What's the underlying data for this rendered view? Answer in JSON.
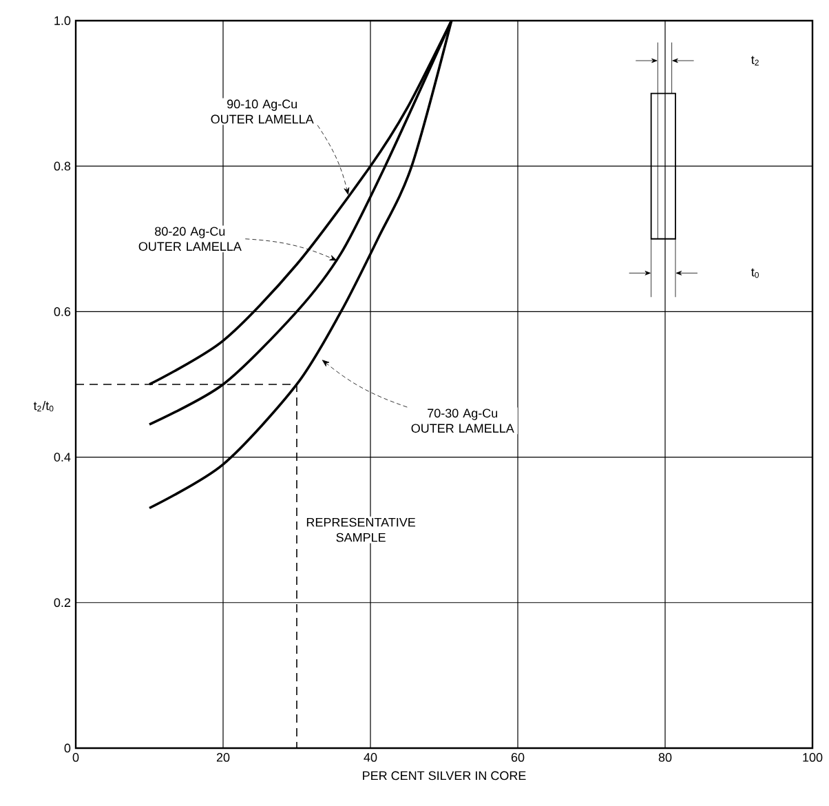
{
  "chart_data": {
    "type": "line",
    "xlabel": "PER CENT SILVER IN CORE",
    "ylabel": "t$_{2}$/t$_{0}$",
    "xlim": [
      0,
      100
    ],
    "ylim": [
      0,
      1
    ],
    "xticks": [
      0,
      20,
      40,
      60,
      80,
      100
    ],
    "yticks": [
      0,
      0.2,
      0.4,
      0.6,
      0.8,
      {
        "value": 1,
        "label": "1.0"
      }
    ],
    "grid": true,
    "marker": "none",
    "series": [
      {
        "color": "#000000",
        "line_style": "solid",
        "x": [
          10,
          20,
          30,
          40,
          45,
          51
        ],
        "values": [
          0.5,
          0.56,
          0.665,
          0.8,
          0.88,
          1.0
        ]
      },
      {
        "color": "#000000",
        "line_style": "solid",
        "x": [
          10,
          20,
          30,
          36,
          42,
          51
        ],
        "values": [
          0.445,
          0.5,
          0.6,
          0.68,
          0.8,
          1.0
        ]
      },
      {
        "color": "#000000",
        "line_style": "solid",
        "x": [
          10,
          20,
          30,
          36,
          41,
          45.6,
          51
        ],
        "values": [
          0.33,
          0.39,
          0.5,
          0.6,
          0.7,
          0.8,
          1.0
        ]
      },
      {
        "color": "#000000",
        "line_style": "dashed",
        "x": [
          0,
          30,
          30
        ],
        "values": [
          0.5,
          0.5,
          0
        ]
      }
    ],
    "annotations": [
      {
        "text": "90-10 Ag-Cu OUTER LAMELLA",
        "x": 37,
        "y": 0.76
      },
      {
        "text": "80-20 Ag-Cu OUTER LAMELLA",
        "x": 35.5,
        "y": 0.67
      },
      {
        "text": "70-30 Ag-Cu OUTER LAMELLA",
        "x": 33.4,
        "y": 0.534
      },
      "REPRESENTATIVE SAMPLE",
      "t$_{2}$",
      "t$_{0}$"
    ]
  }
}
